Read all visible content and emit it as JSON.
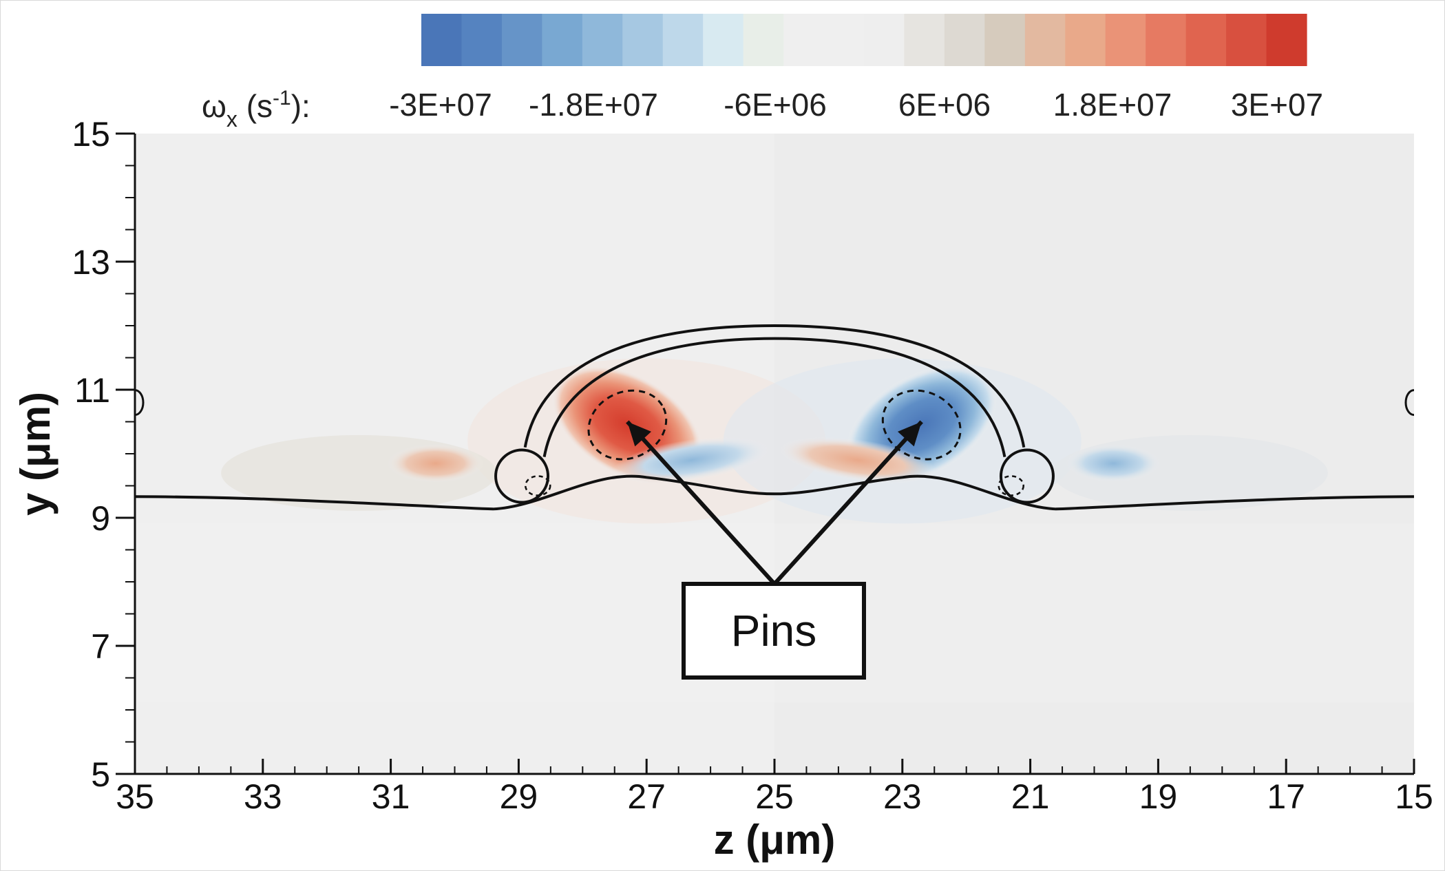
{
  "chart_data": {
    "type": "heatmap",
    "title": "",
    "colorbar": {
      "label_symbol": "ω",
      "label_subscript": "x",
      "label_unit_open": " (s",
      "label_unit_exp": "-1",
      "label_unit_close": "):",
      "range": [
        -30000000,
        30000000
      ],
      "ticks": [
        "-3E+07",
        "-1.8E+07",
        "-6E+06",
        "6E+06",
        "1.8E+07",
        "3E+07"
      ],
      "tick_values": [
        -30000000,
        -18000000,
        -6000000,
        6000000,
        18000000,
        30000000
      ],
      "colors": [
        "#4a76b8",
        "#5583c0",
        "#6694c8",
        "#79a8d2",
        "#8fb8da",
        "#a6c8e2",
        "#bed8ea",
        "#d8eaf1",
        "#e8eee8",
        "#efefef",
        "#efefef",
        "#eeeeee",
        "#e6e4e0",
        "#ddd9d2",
        "#d6cbbd",
        "#e3b9a0",
        "#e9a98a",
        "#ea9377",
        "#e67a62",
        "#e0644f",
        "#d8503f",
        "#cf3b2d"
      ]
    },
    "x_axis": {
      "label": "z (μm)",
      "range": [
        35,
        15
      ],
      "ticks": [
        35,
        33,
        31,
        29,
        27,
        25,
        23,
        21,
        19,
        17,
        15
      ]
    },
    "y_axis": {
      "label": "y (μm)",
      "range": [
        5,
        15
      ],
      "ticks": [
        5,
        7,
        9,
        11,
        13,
        15
      ]
    },
    "vorticity_blobs": [
      {
        "z": 27.3,
        "y": 10.45,
        "sign": "positive",
        "peak": 30000000
      },
      {
        "z": 22.7,
        "y": 10.45,
        "sign": "negative",
        "peak": -30000000
      },
      {
        "z": 26.3,
        "y": 9.9,
        "sign": "negative",
        "peak": -12000000
      },
      {
        "z": 23.7,
        "y": 9.9,
        "sign": "positive",
        "peak": 12000000
      },
      {
        "z": 30.3,
        "y": 9.85,
        "sign": "positive",
        "peak": 8000000
      },
      {
        "z": 19.7,
        "y": 9.85,
        "sign": "negative",
        "peak": -8000000
      }
    ],
    "interface_baseline_y": 9.33,
    "droplet_outer_top_y": 12.0,
    "pins_dashed": [
      {
        "z": 27.3,
        "y": 10.45
      },
      {
        "z": 22.7,
        "y": 10.45
      }
    ],
    "annotation": {
      "text": "Pins",
      "box_center": {
        "z": 25,
        "y": 7.2
      },
      "arrow_targets": [
        {
          "z": 27.3,
          "y": 10.5
        },
        {
          "z": 22.7,
          "y": 10.5
        }
      ]
    }
  }
}
